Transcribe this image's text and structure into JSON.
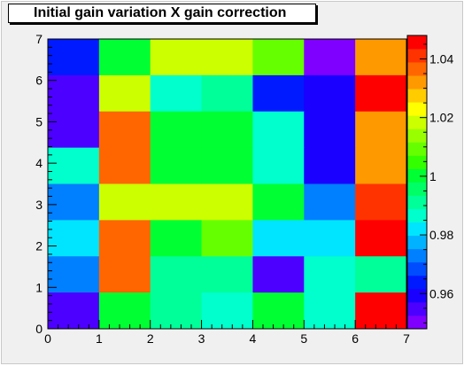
{
  "chart_data": {
    "type": "heatmap",
    "title": "Initial gain variation X gain correction",
    "x_range": [
      0,
      7
    ],
    "y_range": [
      0,
      7
    ],
    "x_ticks": [
      "0",
      "1",
      "2",
      "3",
      "4",
      "5",
      "6",
      "7"
    ],
    "y_ticks": [
      "0",
      "1",
      "2",
      "3",
      "4",
      "5",
      "6",
      "7"
    ],
    "z_range": [
      0.948,
      1.048
    ],
    "colorbar_ticks": [
      {
        "value": 0.96,
        "label": "0.96"
      },
      {
        "value": 0.98,
        "label": "0.98"
      },
      {
        "value": 1.0,
        "label": "1"
      },
      {
        "value": 1.02,
        "label": "1.02"
      },
      {
        "value": 1.04,
        "label": "1.04"
      }
    ],
    "palette": [
      "#7f00ff",
      "#4c00ff",
      "#1a00ff",
      "#001aff",
      "#004cff",
      "#007fff",
      "#00b2ff",
      "#00e5ff",
      "#00ffcc",
      "#00ff99",
      "#00ff66",
      "#00ff33",
      "#33ff00",
      "#66ff00",
      "#99ff00",
      "#ccff00",
      "#ffff00",
      "#ffcc00",
      "#ff9900",
      "#ff6600",
      "#ff3300",
      "#ff0000"
    ],
    "cells": [
      [
        0.962,
        0.999,
        1.018,
        1.018,
        1.008,
        0.952,
        1.033
      ],
      [
        0.955,
        1.02,
        0.987,
        0.993,
        0.964,
        0.958,
        1.045
      ],
      [
        0.957,
        1.035,
        1.0,
        1.0,
        0.987,
        0.958,
        1.031
      ],
      [
        0.986,
        1.035,
        1.0,
        1.0,
        0.987,
        0.958,
        1.031
      ],
      [
        0.972,
        1.018,
        1.018,
        1.018,
        1.0,
        0.973,
        1.043
      ],
      [
        0.981,
        1.037,
        1.0,
        1.01,
        0.981,
        0.981,
        1.044
      ],
      [
        0.975,
        1.037,
        0.993,
        0.993,
        0.955,
        0.985,
        0.993
      ],
      [
        0.955,
        1.0,
        0.993,
        0.985,
        1.0,
        0.985,
        1.045
      ]
    ]
  }
}
